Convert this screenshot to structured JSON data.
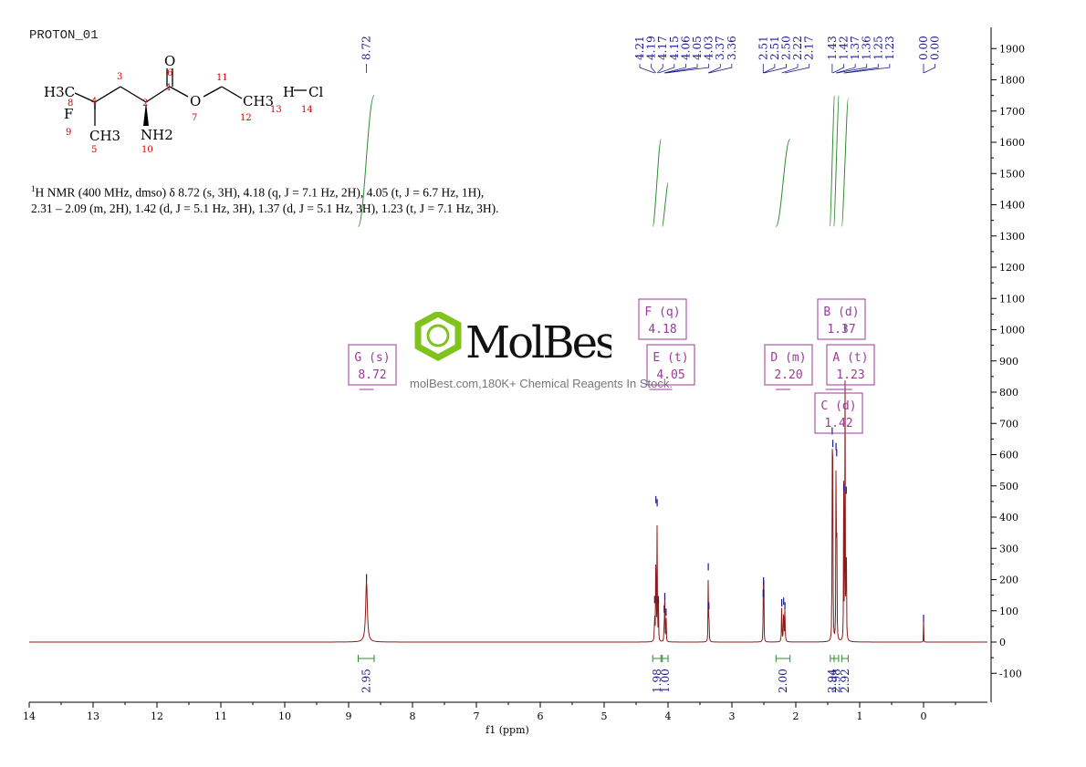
{
  "compound_label": "PROTON_01",
  "nmr_description_line1": "H NMR (400 MHz, dmso) δ 8.72 (s, 3H), 4.18 (q, J = 7.1 Hz, 2H), 4.05 (t, J = 6.7 Hz, 1H),",
  "nmr_description_sup": "1",
  "nmr_description_line2": "2.31 – 2.09 (m, 2H), 1.42 (d, J = 5.1 Hz, 3H), 1.37 (d, J = 5.1 Hz, 3H), 1.23 (t, J = 7.1 Hz, 3H).",
  "watermark": {
    "brand": "MolBest",
    "tagline": "molBest.com,180K+ Chemical Reagents In Stock."
  },
  "structure": {
    "atoms": [
      "H3C",
      "F",
      "CH3",
      "O",
      "O",
      "NH2",
      "CH3",
      "H",
      "Cl"
    ],
    "numbers": [
      "8",
      "4",
      "3",
      "2",
      "1",
      "6",
      "11",
      "9",
      "5",
      "10",
      "7",
      "12",
      "13",
      "14"
    ]
  },
  "colors": {
    "spectrum": "#8b1a1a",
    "integral": "#2e8b2e",
    "peak_label": "#1a1a8c",
    "multiplet_box": "#9b3a9b",
    "atom_number": "#d40000",
    "watermark_green": "#7fc31c"
  },
  "chart_data": {
    "type": "line",
    "xlabel": "f1 (ppm)",
    "xlim": [
      14,
      -1
    ],
    "ylim": [
      -150,
      1950
    ],
    "x_ticks": [
      "14",
      "13",
      "12",
      "11",
      "10",
      "9",
      "8",
      "7",
      "6",
      "5",
      "4",
      "3",
      "2",
      "1",
      "0"
    ],
    "y_ticks": [
      "1900",
      "1800",
      "1700",
      "1600",
      "1500",
      "1400",
      "1300",
      "1200",
      "1100",
      "1000",
      "900",
      "800",
      "700",
      "600",
      "500",
      "400",
      "300",
      "200",
      "100",
      "0",
      "-100"
    ],
    "peaks": [
      {
        "ppm": 8.72,
        "height": 200,
        "width": 0.03
      },
      {
        "ppm": 4.21,
        "height": 130,
        "width": 0.006
      },
      {
        "ppm": 4.19,
        "height": 450,
        "width": 0.006
      },
      {
        "ppm": 4.17,
        "height": 440,
        "width": 0.006
      },
      {
        "ppm": 4.15,
        "height": 130,
        "width": 0.006
      },
      {
        "ppm": 4.06,
        "height": 100,
        "width": 0.006
      },
      {
        "ppm": 4.05,
        "height": 140,
        "width": 0.006
      },
      {
        "ppm": 4.03,
        "height": 90,
        "width": 0.006
      },
      {
        "ppm": 3.37,
        "height": 235,
        "width": 0.006
      },
      {
        "ppm": 3.36,
        "height": 110,
        "width": 0.006
      },
      {
        "ppm": 2.51,
        "height": 150,
        "width": 0.005
      },
      {
        "ppm": 2.505,
        "height": 190,
        "width": 0.005
      },
      {
        "ppm": 2.5,
        "height": 150,
        "width": 0.005
      },
      {
        "ppm": 2.22,
        "height": 120,
        "width": 0.008
      },
      {
        "ppm": 2.19,
        "height": 125,
        "width": 0.008
      },
      {
        "ppm": 2.17,
        "height": 110,
        "width": 0.008
      },
      {
        "ppm": 1.43,
        "height": 670,
        "width": 0.006
      },
      {
        "ppm": 1.42,
        "height": 630,
        "width": 0.006
      },
      {
        "ppm": 1.37,
        "height": 620,
        "width": 0.006
      },
      {
        "ppm": 1.36,
        "height": 600,
        "width": 0.006
      },
      {
        "ppm": 1.25,
        "height": 490,
        "width": 0.006
      },
      {
        "ppm": 1.23,
        "height": 1000,
        "width": 0.006
      },
      {
        "ppm": 1.21,
        "height": 480,
        "width": 0.006
      },
      {
        "ppm": 0.0,
        "height": 70,
        "width": 0.004
      }
    ],
    "peak_labels_top": [
      "8.72",
      "4.21",
      "4.19",
      "4.17",
      "4.15",
      "4.06",
      "4.05",
      "4.03",
      "3.37",
      "3.36",
      "2.51",
      "2.51",
      "2.50",
      "2.22",
      "2.17",
      "1.43",
      "1.42",
      "1.37",
      "1.36",
      "1.25",
      "1.23",
      "0.00",
      "0.00"
    ],
    "peak_label_ppm": [
      8.72,
      4.21,
      4.19,
      4.17,
      4.15,
      4.06,
      4.05,
      4.03,
      3.37,
      3.36,
      2.51,
      2.51,
      2.5,
      2.22,
      2.17,
      1.43,
      1.42,
      1.37,
      1.36,
      1.25,
      1.23,
      0.0,
      0.0
    ],
    "multiplets": [
      {
        "letter": "G (s)",
        "shift": "8.72",
        "ppm": 8.72
      },
      {
        "letter": "F (q)",
        "shift": "4.18",
        "ppm": 4.18
      },
      {
        "letter": "E (t)",
        "shift": "4.05",
        "ppm": 4.05
      },
      {
        "letter": "D (m)",
        "shift": "2.20",
        "ppm": 2.2
      },
      {
        "letter": "B (d)",
        "shift": "1.37",
        "ppm": 1.37
      },
      {
        "letter": "A (t)",
        "shift": "1.23",
        "ppm": 1.23
      },
      {
        "letter": "C (d)",
        "shift": "1.42",
        "ppm": 1.42
      }
    ],
    "integrals": [
      {
        "value": "2.95",
        "from": 8.85,
        "to": 8.6,
        "curve_top": 1750
      },
      {
        "value": "1.98",
        "from": 4.24,
        "to": 4.11,
        "curve_top": 1610
      },
      {
        "value": "1.00",
        "from": 4.09,
        "to": 4.0,
        "curve_top": 1470
      },
      {
        "value": "2.00",
        "from": 2.31,
        "to": 2.09,
        "curve_top": 1610
      },
      {
        "value": "2.94",
        "from": 1.46,
        "to": 1.4,
        "curve_top": 1750
      },
      {
        "value": "2.98",
        "from": 1.4,
        "to": 1.33,
        "curve_top": 1750
      },
      {
        "value": "2.92",
        "from": 1.28,
        "to": 1.18,
        "curve_top": 1740
      }
    ]
  }
}
